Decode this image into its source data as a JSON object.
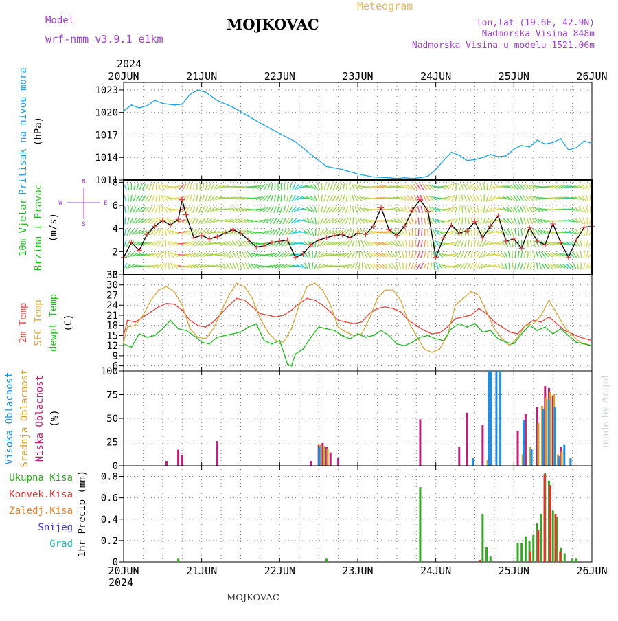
{
  "header": {
    "model_label": "Model",
    "model_name": "wrf-nmm_v3.9.1  e1km",
    "station": "MOJKOVAC",
    "product": "Meteogram",
    "coords": "lon,lat (19.6E, 42.9N)",
    "elevation": "Nadmorska Visina 848m",
    "model_elevation": "Nadmorska Visina u modelu 1521.06m",
    "year_top": "2024",
    "year_bottom": "2024",
    "footer_station": "MOJKOVAC",
    "credit": "made by Angel"
  },
  "colors": {
    "pressure": "#1aa3e8",
    "temp2m": "#e8453c",
    "sfc": "#d9a53a",
    "dewpt": "#22bb22",
    "high_cloud": "#1e90e0",
    "mid_cloud": "#d4a030",
    "low_cloud": "#c0207a",
    "total_precip": "#33aa22",
    "conv_precip": "#e83030",
    "frozen_precip": "#f08020",
    "snow": "#3333dd",
    "hail": "#22bbbb",
    "label_purple": "#a040d0",
    "grid": "#888888"
  },
  "chart_data": [
    {
      "type": "line",
      "panel": "pressure",
      "ylabel": [
        "Pritisak na nivou mora",
        "(hPa)"
      ],
      "ylim": [
        1011,
        1024
      ],
      "yticks": [
        1011,
        1014,
        1017,
        1020,
        1023
      ],
      "x_start": "20JUN",
      "x_ticks": [
        "20JUN",
        "21JUN",
        "22JUN",
        "23JUN",
        "24JUN",
        "25JUN",
        "26JUN"
      ],
      "series": [
        {
          "key": "pressure",
          "x": [
            0,
            0.1,
            0.2,
            0.3,
            0.4,
            0.5,
            0.65,
            0.75,
            0.85,
            0.95,
            1.05,
            1.2,
            1.4,
            1.6,
            1.8,
            2.0,
            2.2,
            2.4,
            2.6,
            2.8,
            3.0,
            3.2,
            3.4,
            3.5,
            3.6,
            3.7,
            3.8,
            3.9,
            4.0,
            4.1,
            4.2,
            4.3,
            4.4,
            4.5,
            4.6,
            4.7,
            4.8,
            4.9,
            5.0,
            5.1,
            5.2,
            5.3,
            5.4,
            5.5,
            5.6,
            5.7,
            5.8,
            5.9,
            6.0
          ],
          "values": [
            1020.2,
            1021.0,
            1020.6,
            1020.9,
            1021.6,
            1021.2,
            1021.0,
            1021.1,
            1022.4,
            1023.0,
            1022.7,
            1021.6,
            1020.7,
            1019.5,
            1018.3,
            1017.2,
            1016.1,
            1014.4,
            1012.8,
            1012.4,
            1011.8,
            1011.4,
            1011.3,
            1011.2,
            1011.3,
            1011.2,
            1011.3,
            1011.5,
            1012.4,
            1013.6,
            1014.7,
            1014.3,
            1013.6,
            1013.7,
            1014.0,
            1014.4,
            1014.1,
            1014.2,
            1015.1,
            1015.6,
            1015.4,
            1016.3,
            1015.8,
            1016.0,
            1016.5,
            1015.0,
            1015.3,
            1016.2,
            1015.9
          ]
        }
      ]
    },
    {
      "type": "line",
      "panel": "wind",
      "ylabel": [
        "10m Vjetar",
        "Brzina i Pravac",
        "(m/s)"
      ],
      "compass": [
        "N",
        "E",
        "S",
        "W"
      ],
      "ylim": [
        0,
        8.2
      ],
      "yticks": [
        0,
        2,
        4,
        6,
        8
      ],
      "series": [
        {
          "key": "wind_speed",
          "x": [
            0,
            0.1,
            0.2,
            0.3,
            0.4,
            0.5,
            0.6,
            0.7,
            0.75,
            0.8,
            0.9,
            1.0,
            1.1,
            1.2,
            1.3,
            1.4,
            1.5,
            1.6,
            1.7,
            1.8,
            1.9,
            2.0,
            2.1,
            2.2,
            2.3,
            2.4,
            2.5,
            2.6,
            2.7,
            2.8,
            2.9,
            3.0,
            3.1,
            3.2,
            3.3,
            3.4,
            3.5,
            3.6,
            3.7,
            3.8,
            3.9,
            4.0,
            4.1,
            4.2,
            4.3,
            4.4,
            4.5,
            4.6,
            4.7,
            4.8,
            4.9,
            5.0,
            5.1,
            5.2,
            5.3,
            5.4,
            5.5,
            5.6,
            5.7,
            5.8,
            5.9,
            6.0
          ],
          "values": [
            1.5,
            2.8,
            2.1,
            3.5,
            4.2,
            4.7,
            4.3,
            4.8,
            6.5,
            5.2,
            3.2,
            3.4,
            3.1,
            3.3,
            3.6,
            3.9,
            3.6,
            3.0,
            2.4,
            2.5,
            2.8,
            2.9,
            3.0,
            1.5,
            1.8,
            2.6,
            3.0,
            3.2,
            3.4,
            3.5,
            3.2,
            3.6,
            3.5,
            4.2,
            5.8,
            3.9,
            3.4,
            4.2,
            5.6,
            6.5,
            5.5,
            1.5,
            3.2,
            4.3,
            3.6,
            3.8,
            4.6,
            3.2,
            4.2,
            5.1,
            2.9,
            3.1,
            2.3,
            4.1,
            2.9,
            2.6,
            4.4,
            2.8,
            1.5,
            3.0,
            4.1,
            4.2
          ]
        }
      ]
    },
    {
      "type": "line",
      "panel": "temperature",
      "ylabel": [
        "2m Temp",
        "SFC Temp",
        "dewpt Temp",
        "(C)"
      ],
      "ylim": [
        4.5,
        33
      ],
      "yticks": [
        6,
        9,
        12,
        15,
        18,
        21,
        24,
        27,
        30,
        33
      ],
      "series": [
        {
          "name": "2m Temp",
          "key": "temp2m",
          "x": [
            0,
            0.05,
            0.15,
            0.25,
            0.35,
            0.45,
            0.55,
            0.65,
            0.75,
            0.85,
            0.95,
            1.05,
            1.15,
            1.25,
            1.35,
            1.45,
            1.55,
            1.65,
            1.75,
            1.85,
            1.95,
            2.05,
            2.15,
            2.25,
            2.35,
            2.45,
            2.55,
            2.65,
            2.75,
            2.85,
            2.95,
            3.05,
            3.15,
            3.25,
            3.35,
            3.45,
            3.55,
            3.65,
            3.75,
            3.85,
            3.95,
            4.05,
            4.15,
            4.25,
            4.35,
            4.45,
            4.55,
            4.65,
            4.75,
            4.85,
            4.95,
            5.05,
            5.15,
            5.25,
            5.35,
            5.45,
            5.55,
            5.65,
            5.75,
            5.85,
            6.0
          ],
          "values": [
            15,
            19.5,
            19,
            20.5,
            22,
            23.5,
            24.5,
            24.3,
            22.5,
            19.5,
            18,
            17.5,
            19,
            21.5,
            24,
            26,
            25.5,
            23.5,
            21.5,
            21,
            20.5,
            21,
            22.5,
            24.5,
            26,
            25.5,
            24,
            22,
            19.5,
            19,
            18.5,
            19,
            21.5,
            23,
            23.5,
            23,
            22,
            19.5,
            18,
            16.5,
            15.5,
            15.8,
            17.5,
            20,
            20.5,
            21,
            23,
            21.5,
            19,
            17.5,
            16,
            15.5,
            18,
            19.5,
            19,
            20.5,
            18.5,
            16.5,
            15.5,
            14.5,
            13.5
          ]
        },
        {
          "name": "SFC Temp",
          "key": "sfc",
          "x": [
            0,
            0.05,
            0.15,
            0.25,
            0.35,
            0.45,
            0.55,
            0.65,
            0.75,
            0.85,
            0.95,
            1.05,
            1.15,
            1.25,
            1.35,
            1.45,
            1.55,
            1.65,
            1.75,
            1.85,
            1.95,
            2.05,
            2.15,
            2.25,
            2.35,
            2.45,
            2.55,
            2.65,
            2.75,
            2.85,
            2.95,
            3.05,
            3.15,
            3.25,
            3.35,
            3.45,
            3.55,
            3.65,
            3.75,
            3.85,
            3.95,
            4.05,
            4.15,
            4.25,
            4.35,
            4.45,
            4.55,
            4.65,
            4.75,
            4.85,
            4.95,
            5.05,
            5.15,
            5.25,
            5.35,
            5.45,
            5.55,
            5.65,
            5.75,
            5.85,
            6.0
          ],
          "values": [
            13,
            17.5,
            18,
            21,
            25.5,
            28.5,
            29.5,
            28,
            24,
            17,
            14.5,
            14,
            17,
            22,
            27,
            30.5,
            29.5,
            26,
            20,
            16,
            13.5,
            13,
            17,
            24,
            29.5,
            30.5,
            28.5,
            24,
            17.5,
            16,
            15,
            15.5,
            20,
            26,
            28.5,
            28.5,
            25.5,
            19,
            15,
            11,
            10,
            11,
            15,
            24,
            26,
            28,
            27,
            22,
            17,
            14,
            12,
            14.5,
            18,
            18.5,
            21,
            25.5,
            21.5,
            17.5,
            15,
            13,
            12
          ]
        },
        {
          "name": "dewpt Temp",
          "key": "dewpt",
          "x": [
            0,
            0.1,
            0.2,
            0.3,
            0.4,
            0.5,
            0.6,
            0.7,
            0.8,
            0.9,
            1.0,
            1.1,
            1.2,
            1.3,
            1.4,
            1.5,
            1.6,
            1.7,
            1.8,
            1.9,
            2.0,
            2.1,
            2.15,
            2.2,
            2.3,
            2.4,
            2.5,
            2.6,
            2.7,
            2.8,
            2.9,
            3.0,
            3.1,
            3.2,
            3.3,
            3.4,
            3.5,
            3.6,
            3.7,
            3.8,
            3.9,
            4.0,
            4.1,
            4.2,
            4.3,
            4.4,
            4.5,
            4.6,
            4.7,
            4.8,
            4.9,
            5.0,
            5.1,
            5.2,
            5.3,
            5.4,
            5.5,
            5.6,
            5.7,
            5.8,
            5.9,
            6.0
          ],
          "values": [
            12.5,
            11.5,
            15.5,
            14.5,
            15.0,
            17.0,
            19.5,
            17.0,
            16.5,
            15.0,
            13.0,
            12.5,
            14.5,
            15.0,
            15.5,
            16.0,
            17.5,
            18.5,
            13.5,
            12.5,
            13.5,
            6.5,
            6.0,
            9.5,
            11.0,
            14.5,
            17.5,
            17.0,
            16.5,
            15.0,
            14.0,
            15.5,
            14.5,
            15.0,
            16.5,
            15.0,
            12.5,
            12.0,
            13.0,
            14.5,
            15.0,
            14.0,
            13.5,
            17.0,
            18.5,
            17.5,
            18.5,
            16.0,
            16.5,
            14.0,
            13.0,
            12.5,
            15.5,
            18.0,
            16.5,
            17.5,
            15.5,
            17.0,
            15.0,
            13.0,
            12.5,
            12.0
          ]
        }
      ]
    },
    {
      "type": "bar",
      "panel": "clouds",
      "ylabel": [
        "Visoka Oblacnost",
        "Srednja Oblacnost",
        "Niska Oblacnost",
        "(%)"
      ],
      "ylim": [
        0,
        100
      ],
      "yticks": [
        0,
        25,
        50,
        75,
        100
      ],
      "series": [
        {
          "name": "Niska Oblacnost",
          "key": "low_cloud",
          "x": [
            0.55,
            0.7,
            0.75,
            1.2,
            2.4,
            2.5,
            2.55,
            2.6,
            2.65,
            2.75,
            3.8,
            4.3,
            4.4,
            4.6,
            4.7,
            5.05,
            5.15,
            5.3,
            5.4,
            5.45,
            5.5,
            5.6
          ],
          "values": [
            5,
            17,
            11,
            26,
            5,
            22,
            24,
            20,
            14,
            8,
            49,
            20,
            56,
            43,
            70,
            37,
            55,
            62,
            84,
            82,
            74,
            20
          ]
        },
        {
          "name": "Srednja Oblacnost",
          "key": "mid_cloud",
          "x": [
            2.5,
            2.55,
            2.6,
            4.65,
            4.7,
            5.1,
            5.2,
            5.3,
            5.35,
            5.4,
            5.45,
            5.5,
            5.55,
            5.6
          ],
          "values": [
            22,
            21,
            18,
            6,
            6,
            12,
            20,
            45,
            63,
            72,
            78,
            76,
            12,
            15
          ]
        },
        {
          "name": "Visoka Oblacnost",
          "key": "high_cloud",
          "x": [
            2.48,
            4.45,
            4.65,
            4.68,
            4.75,
            4.8,
            5.1,
            5.2,
            5.35,
            5.42,
            5.5,
            5.55,
            5.62,
            5.7
          ],
          "values": [
            20,
            8,
            100,
            100,
            100,
            100,
            48,
            18,
            60,
            70,
            62,
            10,
            22,
            8
          ]
        }
      ]
    },
    {
      "type": "bar",
      "panel": "precipitation",
      "ylabel": [
        "1hr Precip (mm)"
      ],
      "legend": [
        "Ukupna Kisa",
        "Konvek.Kisa",
        "Zaledj.Kisa",
        "Snijeg",
        "Grad"
      ],
      "ylim": [
        0,
        0.9
      ],
      "yticks": [
        0,
        0.2,
        0.4,
        0.6,
        0.8
      ],
      "series": [
        {
          "name": "Ukupna Kisa",
          "key": "total_precip",
          "x": [
            0.7,
            2.6,
            3.8,
            4.6,
            4.65,
            4.7,
            5.05,
            5.1,
            5.15,
            5.2,
            5.25,
            5.3,
            5.35,
            5.4,
            5.45,
            5.5,
            5.55,
            5.6,
            5.65,
            5.75,
            5.8
          ],
          "values": [
            0.03,
            0.03,
            0.7,
            0.45,
            0.14,
            0.05,
            0.18,
            0.18,
            0.24,
            0.2,
            0.25,
            0.36,
            0.45,
            0.83,
            0.76,
            0.48,
            0.42,
            0.13,
            0.08,
            0.03,
            0.03
          ]
        },
        {
          "name": "Konvek.Kisa",
          "key": "conv_precip",
          "x": [
            4.55,
            5.2,
            5.3,
            5.38,
            5.45,
            5.52,
            5.58
          ],
          "values": [
            0.02,
            0.1,
            0.3,
            0.82,
            0.72,
            0.45,
            0.1
          ]
        }
      ]
    }
  ]
}
